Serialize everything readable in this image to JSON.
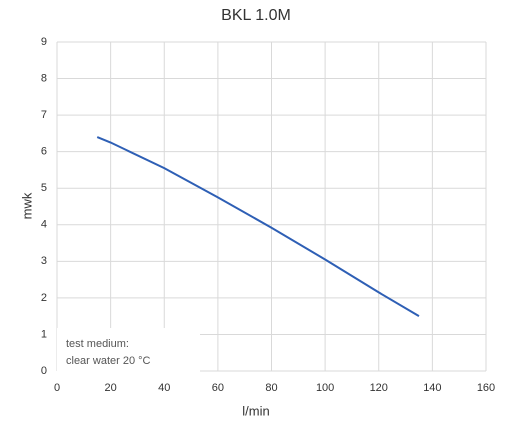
{
  "chart_data": {
    "type": "line",
    "title": "BKL 1.0M",
    "x_label": "l/min",
    "y_label": "mwk",
    "series": [
      {
        "name": "BKL 1.0M",
        "color": "#2e5fb5",
        "x": [
          15,
          20,
          40,
          60,
          80,
          100,
          120,
          135
        ],
        "values": [
          6.4,
          6.25,
          5.55,
          4.75,
          3.92,
          3.05,
          2.15,
          1.5
        ]
      }
    ],
    "xlim": [
      0,
      160
    ],
    "xticks": [
      0,
      20,
      40,
      60,
      80,
      100,
      120,
      140,
      160
    ],
    "ylim": [
      0,
      9
    ],
    "yticks": [
      0,
      1,
      2,
      3,
      4,
      5,
      6,
      7,
      8,
      9
    ],
    "grid": true,
    "annotations": [
      "test medium:",
      "clear water 20 °C"
    ]
  }
}
